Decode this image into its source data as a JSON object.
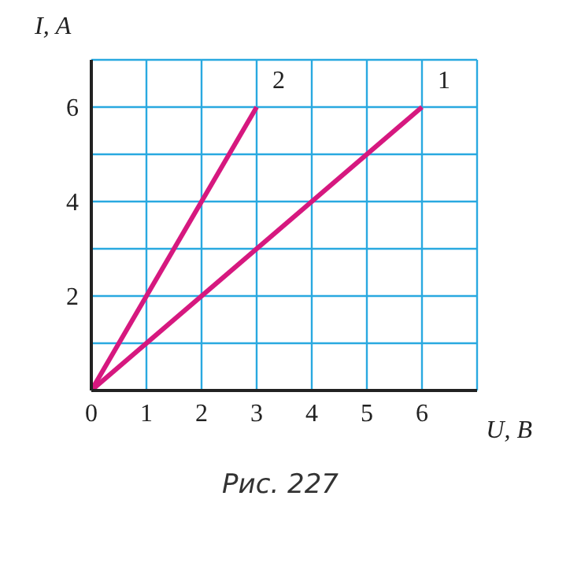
{
  "chart_data": {
    "type": "line",
    "xlabel": "U, В",
    "ylabel": "I, А",
    "annotations": [
      "Рис. 227"
    ],
    "xlim": [
      0,
      7
    ],
    "ylim": [
      0,
      7
    ],
    "xticks": [
      0,
      1,
      2,
      3,
      4,
      5,
      6,
      {
        "value": 7,
        "label": null
      }
    ],
    "yticks": [
      {
        "value": 0,
        "label": null
      },
      {
        "value": 1,
        "label": null
      },
      2,
      {
        "value": 3,
        "label": null
      },
      4,
      {
        "value": 5,
        "label": null
      },
      6,
      {
        "value": 7,
        "label": null
      }
    ],
    "grid": true,
    "marker": "none",
    "line_style": "solid",
    "series": [
      {
        "name": "1",
        "color": "#d6187f",
        "x": [
          0,
          6
        ],
        "values": [
          0,
          6
        ]
      },
      {
        "name": "2",
        "color": "#d6187f",
        "x": [
          0,
          3
        ],
        "values": [
          0,
          6
        ]
      }
    ]
  }
}
